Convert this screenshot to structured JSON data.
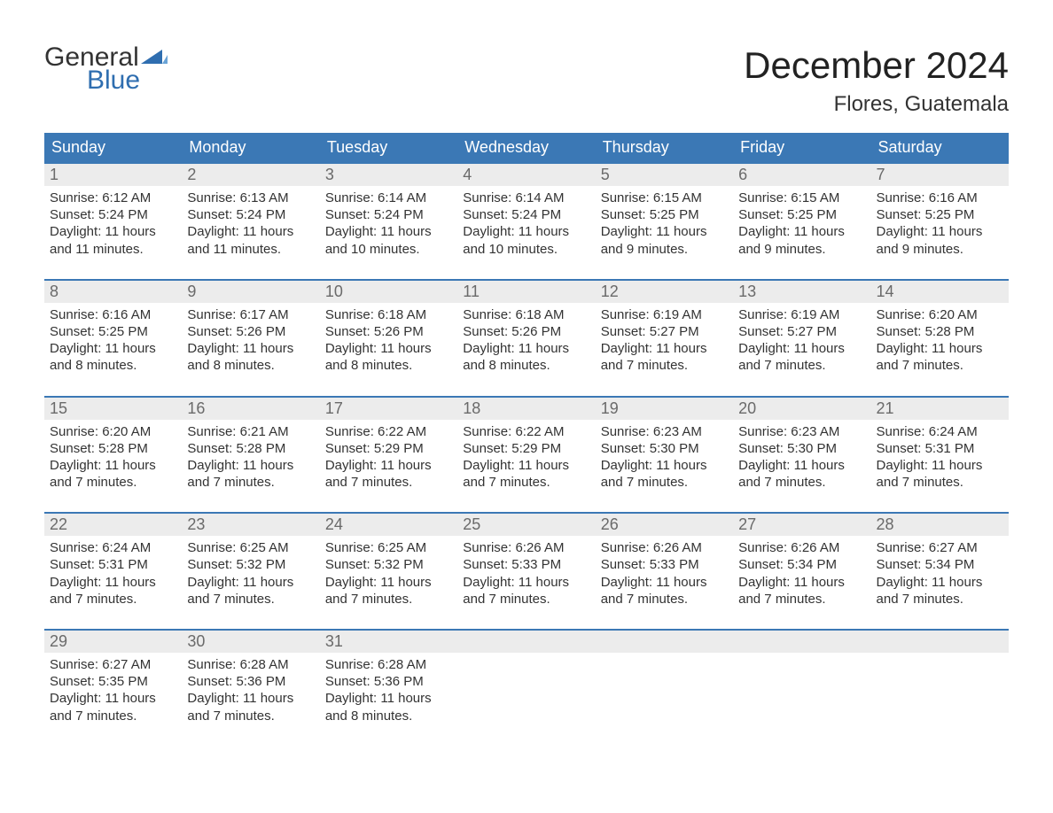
{
  "logo": {
    "word1": "General",
    "word2": "Blue",
    "accent_color": "#2f6eb0"
  },
  "title": "December 2024",
  "location": "Flores, Guatemala",
  "colors": {
    "header_bg": "#3b78b5",
    "header_text": "#ffffff",
    "daynum_bg": "#ececec",
    "daynum_text": "#6a6a6a",
    "body_text": "#333333",
    "week_rule": "#3b78b5",
    "page_bg": "#ffffff"
  },
  "fonts": {
    "title_size_pt": 32,
    "location_size_pt": 18,
    "dayhead_size_pt": 14,
    "body_size_pt": 11
  },
  "day_headers": [
    "Sunday",
    "Monday",
    "Tuesday",
    "Wednesday",
    "Thursday",
    "Friday",
    "Saturday"
  ],
  "weeks": [
    [
      {
        "n": "1",
        "sunrise": "Sunrise: 6:12 AM",
        "sunset": "Sunset: 5:24 PM",
        "d1": "Daylight: 11 hours",
        "d2": "and 11 minutes."
      },
      {
        "n": "2",
        "sunrise": "Sunrise: 6:13 AM",
        "sunset": "Sunset: 5:24 PM",
        "d1": "Daylight: 11 hours",
        "d2": "and 11 minutes."
      },
      {
        "n": "3",
        "sunrise": "Sunrise: 6:14 AM",
        "sunset": "Sunset: 5:24 PM",
        "d1": "Daylight: 11 hours",
        "d2": "and 10 minutes."
      },
      {
        "n": "4",
        "sunrise": "Sunrise: 6:14 AM",
        "sunset": "Sunset: 5:24 PM",
        "d1": "Daylight: 11 hours",
        "d2": "and 10 minutes."
      },
      {
        "n": "5",
        "sunrise": "Sunrise: 6:15 AM",
        "sunset": "Sunset: 5:25 PM",
        "d1": "Daylight: 11 hours",
        "d2": "and 9 minutes."
      },
      {
        "n": "6",
        "sunrise": "Sunrise: 6:15 AM",
        "sunset": "Sunset: 5:25 PM",
        "d1": "Daylight: 11 hours",
        "d2": "and 9 minutes."
      },
      {
        "n": "7",
        "sunrise": "Sunrise: 6:16 AM",
        "sunset": "Sunset: 5:25 PM",
        "d1": "Daylight: 11 hours",
        "d2": "and 9 minutes."
      }
    ],
    [
      {
        "n": "8",
        "sunrise": "Sunrise: 6:16 AM",
        "sunset": "Sunset: 5:25 PM",
        "d1": "Daylight: 11 hours",
        "d2": "and 8 minutes."
      },
      {
        "n": "9",
        "sunrise": "Sunrise: 6:17 AM",
        "sunset": "Sunset: 5:26 PM",
        "d1": "Daylight: 11 hours",
        "d2": "and 8 minutes."
      },
      {
        "n": "10",
        "sunrise": "Sunrise: 6:18 AM",
        "sunset": "Sunset: 5:26 PM",
        "d1": "Daylight: 11 hours",
        "d2": "and 8 minutes."
      },
      {
        "n": "11",
        "sunrise": "Sunrise: 6:18 AM",
        "sunset": "Sunset: 5:26 PM",
        "d1": "Daylight: 11 hours",
        "d2": "and 8 minutes."
      },
      {
        "n": "12",
        "sunrise": "Sunrise: 6:19 AM",
        "sunset": "Sunset: 5:27 PM",
        "d1": "Daylight: 11 hours",
        "d2": "and 7 minutes."
      },
      {
        "n": "13",
        "sunrise": "Sunrise: 6:19 AM",
        "sunset": "Sunset: 5:27 PM",
        "d1": "Daylight: 11 hours",
        "d2": "and 7 minutes."
      },
      {
        "n": "14",
        "sunrise": "Sunrise: 6:20 AM",
        "sunset": "Sunset: 5:28 PM",
        "d1": "Daylight: 11 hours",
        "d2": "and 7 minutes."
      }
    ],
    [
      {
        "n": "15",
        "sunrise": "Sunrise: 6:20 AM",
        "sunset": "Sunset: 5:28 PM",
        "d1": "Daylight: 11 hours",
        "d2": "and 7 minutes."
      },
      {
        "n": "16",
        "sunrise": "Sunrise: 6:21 AM",
        "sunset": "Sunset: 5:28 PM",
        "d1": "Daylight: 11 hours",
        "d2": "and 7 minutes."
      },
      {
        "n": "17",
        "sunrise": "Sunrise: 6:22 AM",
        "sunset": "Sunset: 5:29 PM",
        "d1": "Daylight: 11 hours",
        "d2": "and 7 minutes."
      },
      {
        "n": "18",
        "sunrise": "Sunrise: 6:22 AM",
        "sunset": "Sunset: 5:29 PM",
        "d1": "Daylight: 11 hours",
        "d2": "and 7 minutes."
      },
      {
        "n": "19",
        "sunrise": "Sunrise: 6:23 AM",
        "sunset": "Sunset: 5:30 PM",
        "d1": "Daylight: 11 hours",
        "d2": "and 7 minutes."
      },
      {
        "n": "20",
        "sunrise": "Sunrise: 6:23 AM",
        "sunset": "Sunset: 5:30 PM",
        "d1": "Daylight: 11 hours",
        "d2": "and 7 minutes."
      },
      {
        "n": "21",
        "sunrise": "Sunrise: 6:24 AM",
        "sunset": "Sunset: 5:31 PM",
        "d1": "Daylight: 11 hours",
        "d2": "and 7 minutes."
      }
    ],
    [
      {
        "n": "22",
        "sunrise": "Sunrise: 6:24 AM",
        "sunset": "Sunset: 5:31 PM",
        "d1": "Daylight: 11 hours",
        "d2": "and 7 minutes."
      },
      {
        "n": "23",
        "sunrise": "Sunrise: 6:25 AM",
        "sunset": "Sunset: 5:32 PM",
        "d1": "Daylight: 11 hours",
        "d2": "and 7 minutes."
      },
      {
        "n": "24",
        "sunrise": "Sunrise: 6:25 AM",
        "sunset": "Sunset: 5:32 PM",
        "d1": "Daylight: 11 hours",
        "d2": "and 7 minutes."
      },
      {
        "n": "25",
        "sunrise": "Sunrise: 6:26 AM",
        "sunset": "Sunset: 5:33 PM",
        "d1": "Daylight: 11 hours",
        "d2": "and 7 minutes."
      },
      {
        "n": "26",
        "sunrise": "Sunrise: 6:26 AM",
        "sunset": "Sunset: 5:33 PM",
        "d1": "Daylight: 11 hours",
        "d2": "and 7 minutes."
      },
      {
        "n": "27",
        "sunrise": "Sunrise: 6:26 AM",
        "sunset": "Sunset: 5:34 PM",
        "d1": "Daylight: 11 hours",
        "d2": "and 7 minutes."
      },
      {
        "n": "28",
        "sunrise": "Sunrise: 6:27 AM",
        "sunset": "Sunset: 5:34 PM",
        "d1": "Daylight: 11 hours",
        "d2": "and 7 minutes."
      }
    ],
    [
      {
        "n": "29",
        "sunrise": "Sunrise: 6:27 AM",
        "sunset": "Sunset: 5:35 PM",
        "d1": "Daylight: 11 hours",
        "d2": "and 7 minutes."
      },
      {
        "n": "30",
        "sunrise": "Sunrise: 6:28 AM",
        "sunset": "Sunset: 5:36 PM",
        "d1": "Daylight: 11 hours",
        "d2": "and 7 minutes."
      },
      {
        "n": "31",
        "sunrise": "Sunrise: 6:28 AM",
        "sunset": "Sunset: 5:36 PM",
        "d1": "Daylight: 11 hours",
        "d2": "and 8 minutes."
      },
      {
        "empty": true
      },
      {
        "empty": true
      },
      {
        "empty": true
      },
      {
        "empty": true
      }
    ]
  ]
}
